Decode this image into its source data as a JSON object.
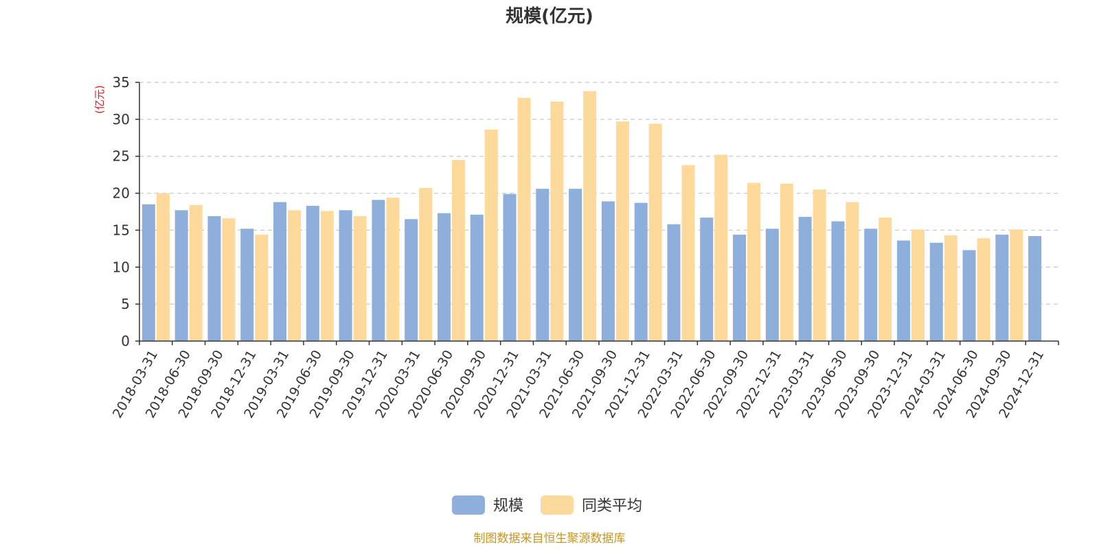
{
  "source_note": "制图数据来自恒生聚源数据库",
  "colors": {
    "series1": "#8eaedb",
    "series2": "#fdd99b",
    "unit_label": "#e8141a",
    "source_note": "#c8961e",
    "grid": "#c8c8c8",
    "axis": "#333333"
  },
  "chart_data": {
    "type": "bar",
    "title": "规模(亿元)",
    "ylabel": "(亿元)",
    "ylim": [
      0,
      35
    ],
    "yticks": [
      0,
      5,
      10,
      15,
      20,
      25,
      30,
      35
    ],
    "grid": true,
    "legend_position": "bottom-center",
    "categories": [
      "2018-03-31",
      "2018-06-30",
      "2018-09-30",
      "2018-12-31",
      "2019-03-31",
      "2019-06-30",
      "2019-09-30",
      "2019-12-31",
      "2020-03-31",
      "2020-06-30",
      "2020-09-30",
      "2020-12-31",
      "2021-03-31",
      "2021-06-30",
      "2021-09-30",
      "2021-12-31",
      "2022-03-31",
      "2022-06-30",
      "2022-09-30",
      "2022-12-31",
      "2023-03-31",
      "2023-06-30",
      "2023-09-30",
      "2023-12-31",
      "2024-03-31",
      "2024-06-30",
      "2024-09-30",
      "2024-12-31"
    ],
    "series": [
      {
        "name": "规模",
        "values": [
          18.5,
          17.7,
          16.9,
          15.2,
          18.8,
          18.3,
          17.7,
          19.1,
          16.5,
          17.3,
          17.1,
          19.9,
          20.6,
          20.6,
          18.9,
          18.7,
          15.8,
          16.7,
          14.4,
          15.2,
          16.8,
          16.2,
          15.2,
          13.6,
          13.3,
          12.3,
          14.4,
          14.2
        ]
      },
      {
        "name": "同类平均",
        "values": [
          20.0,
          18.4,
          16.6,
          14.4,
          17.7,
          17.6,
          16.9,
          19.4,
          20.7,
          24.5,
          28.6,
          32.9,
          32.4,
          33.8,
          29.7,
          29.4,
          23.8,
          25.2,
          21.4,
          21.3,
          20.5,
          18.8,
          16.7,
          15.1,
          14.3,
          13.9,
          15.1,
          null
        ]
      }
    ]
  }
}
